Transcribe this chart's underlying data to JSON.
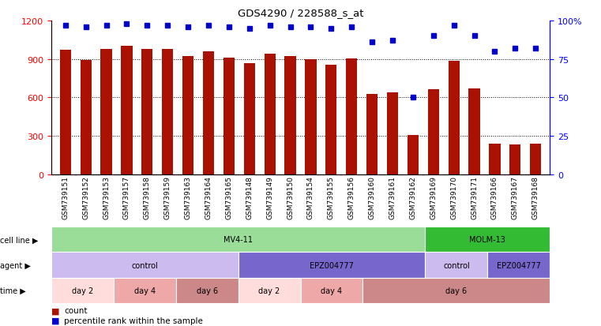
{
  "title": "GDS4290 / 228588_s_at",
  "samples": [
    "GSM739151",
    "GSM739152",
    "GSM739153",
    "GSM739157",
    "GSM739158",
    "GSM739159",
    "GSM739163",
    "GSM739164",
    "GSM739165",
    "GSM739148",
    "GSM739149",
    "GSM739150",
    "GSM739154",
    "GSM739155",
    "GSM739156",
    "GSM739160",
    "GSM739161",
    "GSM739162",
    "GSM739169",
    "GSM739170",
    "GSM739171",
    "GSM739166",
    "GSM739167",
    "GSM739168"
  ],
  "counts": [
    970,
    890,
    980,
    1000,
    980,
    975,
    920,
    960,
    910,
    870,
    940,
    925,
    900,
    855,
    905,
    625,
    640,
    310,
    665,
    885,
    670,
    240,
    235,
    240
  ],
  "percentile_ranks": [
    97,
    96,
    97,
    98,
    97,
    97,
    96,
    97,
    96,
    95,
    97,
    96,
    96,
    95,
    96,
    86,
    87,
    50,
    90,
    97,
    90,
    80,
    82,
    82
  ],
  "ylim_left": [
    0,
    1200
  ],
  "ylim_right": [
    0,
    100
  ],
  "yticks_left": [
    0,
    300,
    600,
    900,
    1200
  ],
  "yticks_right": [
    0,
    25,
    50,
    75,
    100
  ],
  "bar_color": "#AA1100",
  "dot_color": "#0000CC",
  "cell_line_regions": [
    {
      "label": "MV4-11",
      "start": 0,
      "end": 18,
      "color": "#99DD99"
    },
    {
      "label": "MOLM-13",
      "start": 18,
      "end": 24,
      "color": "#33BB33"
    }
  ],
  "agent_regions": [
    {
      "label": "control",
      "start": 0,
      "end": 9,
      "color": "#CCBBEE"
    },
    {
      "label": "EPZ004777",
      "start": 9,
      "end": 18,
      "color": "#7766CC"
    },
    {
      "label": "control",
      "start": 18,
      "end": 21,
      "color": "#CCBBEE"
    },
    {
      "label": "EPZ004777",
      "start": 21,
      "end": 24,
      "color": "#7766CC"
    }
  ],
  "time_regions": [
    {
      "label": "day 2",
      "start": 0,
      "end": 3,
      "color": "#FFDDDD"
    },
    {
      "label": "day 4",
      "start": 3,
      "end": 6,
      "color": "#EEA8A8"
    },
    {
      "label": "day 6",
      "start": 6,
      "end": 9,
      "color": "#CC8888"
    },
    {
      "label": "day 2",
      "start": 9,
      "end": 12,
      "color": "#FFDDDD"
    },
    {
      "label": "day 4",
      "start": 12,
      "end": 15,
      "color": "#EEA8A8"
    },
    {
      "label": "day 6",
      "start": 15,
      "end": 24,
      "color": "#CC8888"
    }
  ],
  "legend_count_color": "#AA1100",
  "legend_dot_color": "#0000CC"
}
